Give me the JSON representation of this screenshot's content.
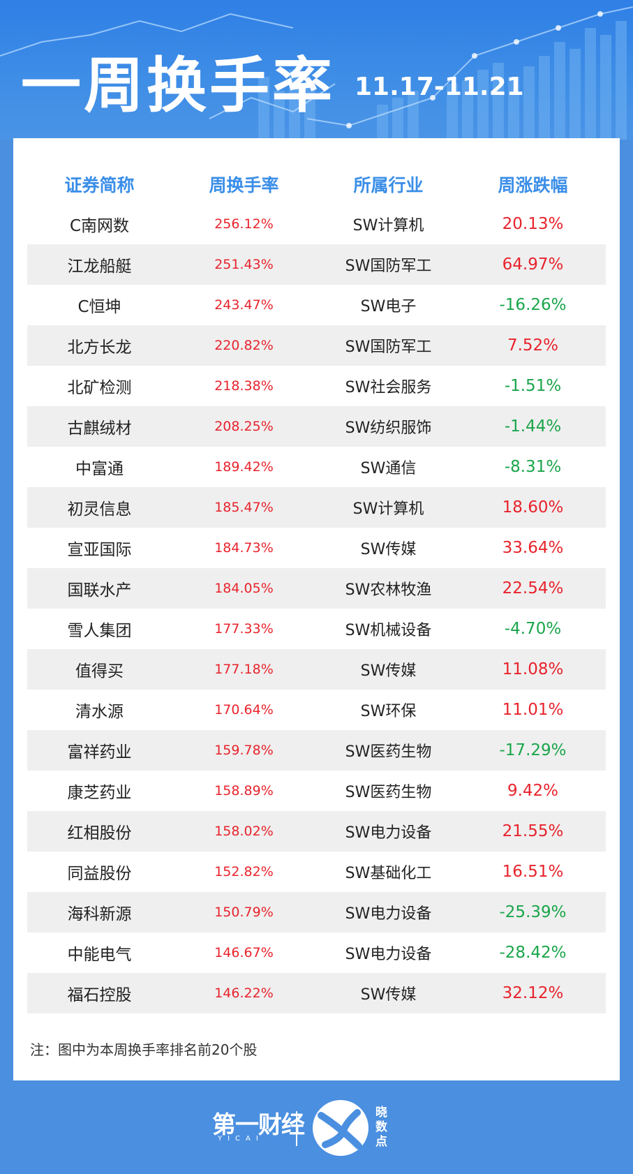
{
  "header": {
    "title": "一周换手率",
    "date": "11.17-11.21"
  },
  "table": {
    "columns": [
      "证券简称",
      "周换手率",
      "所属行业",
      "周涨跌幅"
    ],
    "rows": [
      {
        "name": "C南网数",
        "rate": "256.12%",
        "industry": "SW计算机",
        "change": "20.13%"
      },
      {
        "name": "江龙船艇",
        "rate": "251.43%",
        "industry": "SW国防军工",
        "change": "64.97%"
      },
      {
        "name": "C恒坤",
        "rate": "243.47%",
        "industry": "SW电子",
        "change": "-16.26%"
      },
      {
        "name": "北方长龙",
        "rate": "220.82%",
        "industry": "SW国防军工",
        "change": "7.52%"
      },
      {
        "name": "北矿检测",
        "rate": "218.38%",
        "industry": "SW社会服务",
        "change": "-1.51%"
      },
      {
        "name": "古麒绒材",
        "rate": "208.25%",
        "industry": "SW纺织服饰",
        "change": "-1.44%"
      },
      {
        "name": "中富通",
        "rate": "189.42%",
        "industry": "SW通信",
        "change": "-8.31%"
      },
      {
        "name": "初灵信息",
        "rate": "185.47%",
        "industry": "SW计算机",
        "change": "18.60%"
      },
      {
        "name": "宣亚国际",
        "rate": "184.73%",
        "industry": "SW传媒",
        "change": "33.64%"
      },
      {
        "name": "国联水产",
        "rate": "184.05%",
        "industry": "SW农林牧渔",
        "change": "22.54%"
      },
      {
        "name": "雪人集团",
        "rate": "177.33%",
        "industry": "SW机械设备",
        "change": "-4.70%"
      },
      {
        "name": "值得买",
        "rate": "177.18%",
        "industry": "SW传媒",
        "change": "11.08%"
      },
      {
        "name": "清水源",
        "rate": "170.64%",
        "industry": "SW环保",
        "change": "11.01%"
      },
      {
        "name": "富祥药业",
        "rate": "159.78%",
        "industry": "SW医药生物",
        "change": "-17.29%"
      },
      {
        "name": "康芝药业",
        "rate": "158.89%",
        "industry": "SW医药生物",
        "change": "9.42%"
      },
      {
        "name": "红相股份",
        "rate": "158.02%",
        "industry": "SW电力设备",
        "change": "21.55%"
      },
      {
        "name": "同益股份",
        "rate": "152.82%",
        "industry": "SW基础化工",
        "change": "16.51%"
      },
      {
        "name": "海科新源",
        "rate": "150.79%",
        "industry": "SW电力设备",
        "change": "-25.39%"
      },
      {
        "name": "中能电气",
        "rate": "146.67%",
        "industry": "SW电力设备",
        "change": "-28.42%"
      },
      {
        "name": "福石控股",
        "rate": "146.22%",
        "industry": "SW传媒",
        "change": "32.12%"
      }
    ]
  },
  "note": "注：图中为本周换手率排名前20个股",
  "footer": {
    "logo_main": "第一财经",
    "logo_sub": "YICAI",
    "logo2_text": "晓数点"
  },
  "colors": {
    "header_blue": "#2f7fe6",
    "column_header": "#3a8ee8",
    "rise_red": "#e8232c",
    "fall_green": "#1aa54a",
    "alt_row": "#efefef",
    "footer_blue": "#4a8fe0"
  }
}
